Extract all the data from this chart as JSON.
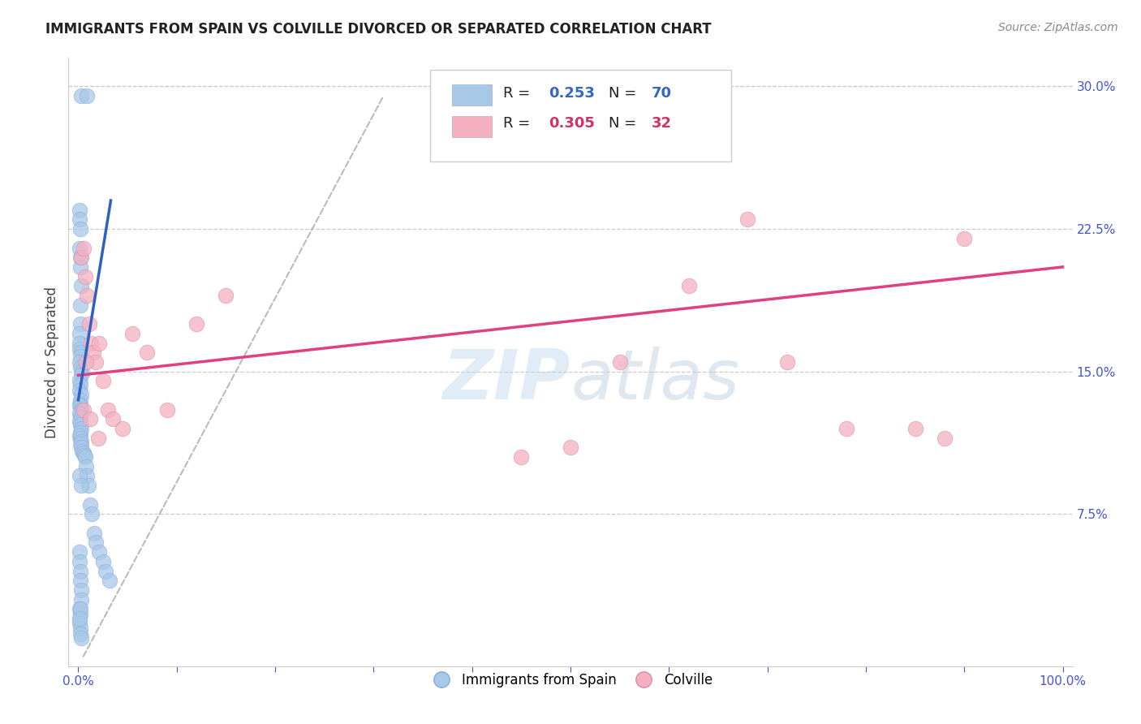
{
  "title": "IMMIGRANTS FROM SPAIN VS COLVILLE DIVORCED OR SEPARATED CORRELATION CHART",
  "source": "Source: ZipAtlas.com",
  "ylabel": "Divorced or Separated",
  "xlim": [
    0.0,
    1.0
  ],
  "ylim": [
    0.0,
    0.31
  ],
  "blue_color": "#a8c8e8",
  "pink_color": "#f4b0c0",
  "blue_line_color": "#3060c0",
  "pink_line_color": "#e04080",
  "watermark": "ZIPatlas",
  "blue_scatter_x": [
    0.003,
    0.009,
    0.001,
    0.001,
    0.002,
    0.001,
    0.002,
    0.002,
    0.003,
    0.002,
    0.002,
    0.001,
    0.001,
    0.001,
    0.003,
    0.002,
    0.001,
    0.002,
    0.004,
    0.003,
    0.001,
    0.002,
    0.001,
    0.003,
    0.002,
    0.001,
    0.002,
    0.003,
    0.001,
    0.002,
    0.001,
    0.002,
    0.003,
    0.002,
    0.001,
    0.002,
    0.003,
    0.002,
    0.003,
    0.004,
    0.005,
    0.006,
    0.007,
    0.008,
    0.009,
    0.01,
    0.012,
    0.014,
    0.016,
    0.018,
    0.021,
    0.025,
    0.028,
    0.032,
    0.001,
    0.001,
    0.002,
    0.002,
    0.003,
    0.003,
    0.001,
    0.002,
    0.001,
    0.002,
    0.002,
    0.003,
    0.001,
    0.003,
    0.002,
    0.001
  ],
  "blue_scatter_y": [
    0.295,
    0.295,
    0.235,
    0.23,
    0.225,
    0.215,
    0.21,
    0.205,
    0.195,
    0.185,
    0.175,
    0.17,
    0.165,
    0.162,
    0.16,
    0.158,
    0.155,
    0.152,
    0.15,
    0.148,
    0.145,
    0.143,
    0.14,
    0.138,
    0.135,
    0.133,
    0.132,
    0.13,
    0.128,
    0.126,
    0.124,
    0.122,
    0.12,
    0.118,
    0.116,
    0.115,
    0.113,
    0.112,
    0.11,
    0.108,
    0.107,
    0.106,
    0.105,
    0.1,
    0.095,
    0.09,
    0.08,
    0.075,
    0.065,
    0.06,
    0.055,
    0.05,
    0.045,
    0.04,
    0.055,
    0.05,
    0.045,
    0.04,
    0.035,
    0.03,
    0.025,
    0.022,
    0.018,
    0.015,
    0.012,
    0.01,
    0.095,
    0.09,
    0.025,
    0.02
  ],
  "pink_scatter_x": [
    0.003,
    0.005,
    0.007,
    0.009,
    0.011,
    0.013,
    0.015,
    0.018,
    0.021,
    0.025,
    0.03,
    0.035,
    0.045,
    0.055,
    0.07,
    0.09,
    0.12,
    0.15,
    0.45,
    0.5,
    0.55,
    0.62,
    0.68,
    0.72,
    0.78,
    0.85,
    0.88,
    0.9,
    0.005,
    0.008,
    0.012,
    0.02
  ],
  "pink_scatter_y": [
    0.21,
    0.215,
    0.2,
    0.19,
    0.175,
    0.165,
    0.16,
    0.155,
    0.165,
    0.145,
    0.13,
    0.125,
    0.12,
    0.17,
    0.16,
    0.13,
    0.175,
    0.19,
    0.105,
    0.11,
    0.155,
    0.195,
    0.23,
    0.155,
    0.12,
    0.12,
    0.115,
    0.22,
    0.13,
    0.155,
    0.125,
    0.115
  ],
  "blue_line_x": [
    0.0,
    0.033
  ],
  "blue_line_y": [
    0.135,
    0.24
  ],
  "pink_line_x": [
    0.0,
    1.0
  ],
  "pink_line_y": [
    0.148,
    0.205
  ],
  "diag_line_x": [
    0.005,
    0.31
  ],
  "diag_line_y": [
    0.0,
    0.295
  ]
}
